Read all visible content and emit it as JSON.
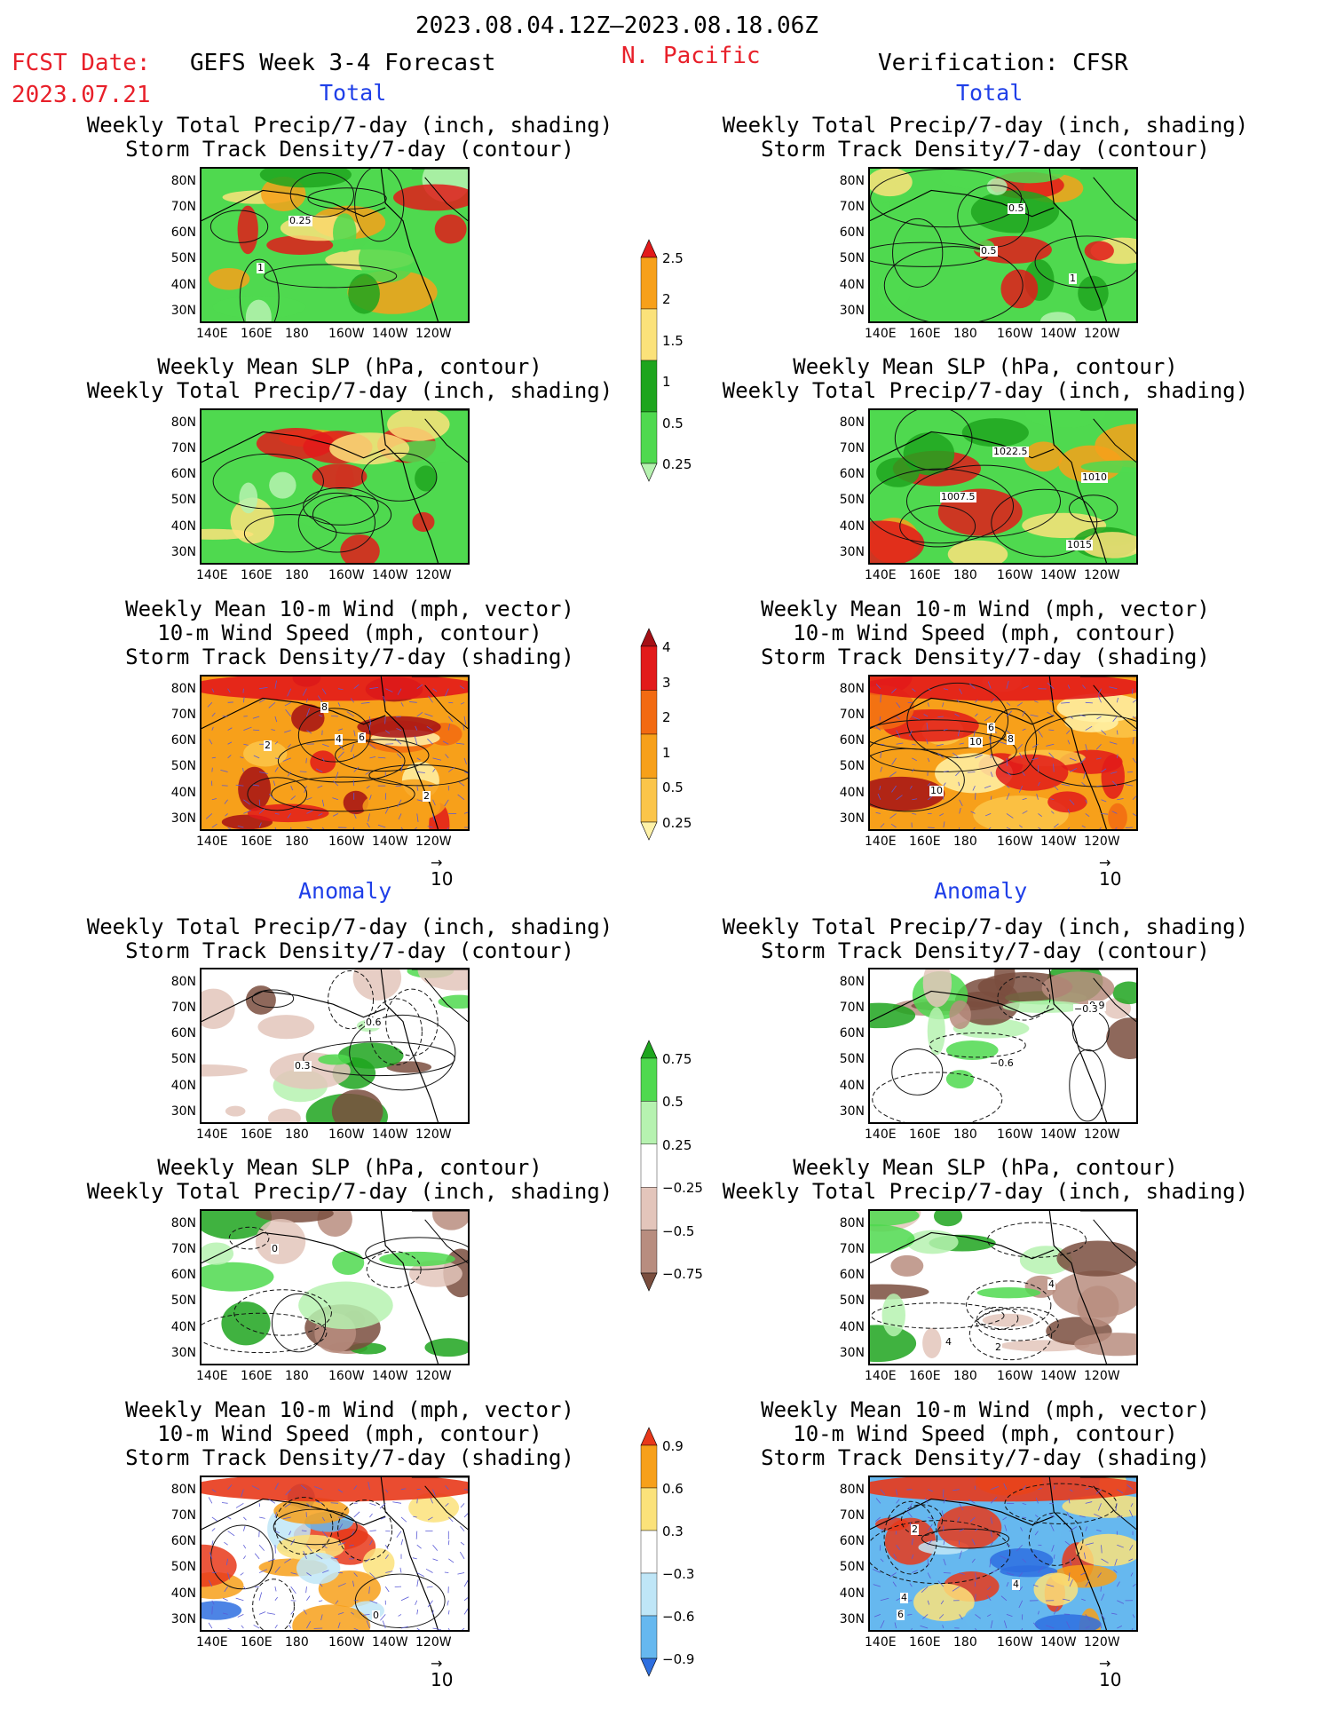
{
  "header": {
    "period": "2023.08.04.12Z–2023.08.18.06Z",
    "fcst_label": "FCST Date:",
    "fcst_date": "2023.07.21",
    "product": "GEFS Week 3-4 Forecast",
    "region": "N. Pacific",
    "verification": "Verification: CFSR"
  },
  "sections": {
    "total": "Total",
    "anomaly": "Anomaly"
  },
  "panel_titles": {
    "precip_storm": [
      "Weekly Total Precip/7-day (inch, shading)",
      "Storm Track Density/7-day (contour)"
    ],
    "slp_precip": [
      "Weekly Mean SLP (hPa, contour)",
      "Weekly Total Precip/7-day (inch, shading)"
    ],
    "wind_storm": [
      "Weekly Mean 10-m Wind (mph, vector)",
      "10-m Wind Speed (mph, contour)",
      "Storm Track Density/7-day (shading)"
    ]
  },
  "axes": {
    "lat_labels": [
      "80N",
      "70N",
      "60N",
      "50N",
      "40N",
      "30N"
    ],
    "lon_labels": [
      "140E",
      "160E",
      "180",
      "160W",
      "140W",
      "120W"
    ]
  },
  "vector_reference": "10",
  "colorbars": [
    {
      "name": "total-precip",
      "labels": [
        "2.5",
        "2",
        "1.5",
        "1",
        "0.5",
        "0.25"
      ],
      "colors": [
        "#e21a1a",
        "#f7a01a",
        "#fbe27a",
        "#1ea51e",
        "#4fd94f",
        "#b6f2b0"
      ]
    },
    {
      "name": "total-storm-density",
      "labels": [
        "4",
        "3",
        "2",
        "1",
        "0.5",
        "0.25"
      ],
      "colors": [
        "#a50f15",
        "#e21a1a",
        "#f26a12",
        "#f7a01a",
        "#fbc54a",
        "#fff2a8"
      ]
    },
    {
      "name": "anomaly-precip",
      "labels": [
        "0.75",
        "0.5",
        "0.25",
        "−0.25",
        "−0.5",
        "−0.75"
      ],
      "colors": [
        "#1ea51e",
        "#4fd94f",
        "#b6f2b0",
        "#ffffff",
        "#e3c5bb",
        "#b88d7f",
        "#7a4e3e"
      ]
    },
    {
      "name": "anomaly-storm-density",
      "labels": [
        "0.9",
        "0.6",
        "0.3",
        "−0.3",
        "−0.6",
        "−0.9"
      ],
      "colors": [
        "#e8381a",
        "#f7a01a",
        "#fbe27a",
        "#ffffff",
        "#bfe6f7",
        "#66b8ef",
        "#2e6fe0"
      ]
    }
  ],
  "contour_labels": {
    "r1_left": [
      "1",
      "0.25"
    ],
    "r1_right": [
      "0.5",
      "1",
      "0.5"
    ],
    "r2_right": [
      "1010",
      "1007.5",
      "1015",
      "1022.5"
    ],
    "r3_left": [
      "2",
      "2",
      "4",
      "6",
      "8"
    ],
    "r3_right": [
      "6",
      "8",
      "10",
      "10"
    ],
    "r4_left": [
      "0.6",
      "0.3"
    ],
    "r4_right": [
      "0.9",
      "−0.3",
      "−0.6"
    ],
    "r5_left": [
      "0"
    ],
    "r5_right": [
      "2",
      "4",
      "4"
    ],
    "r6_left": [
      "0"
    ],
    "r6_right": [
      "4",
      "4",
      "2",
      "6"
    ]
  }
}
